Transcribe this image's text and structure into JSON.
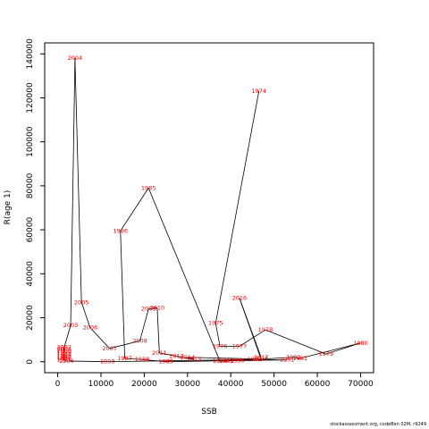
{
  "chart_data": {
    "type": "line",
    "title": "",
    "xlabel": "SSB",
    "ylabel": "R(age 1)",
    "xlim": [
      -3000,
      73000
    ],
    "ylim": [
      -5000,
      145000
    ],
    "xticks": [
      0,
      10000,
      20000,
      30000,
      40000,
      50000,
      60000,
      70000
    ],
    "yticks": [
      0,
      20000,
      40000,
      60000,
      80000,
      100000,
      120000,
      140000
    ],
    "grid": false,
    "legend": "none",
    "line_color": "#000000",
    "label_color": "#ff0000",
    "series": [
      {
        "points": [
          {
            "year": "1974",
            "x": 46500,
            "y": 123000
          },
          {
            "year": "1975",
            "x": 36500,
            "y": 17500
          },
          {
            "year": "1976",
            "x": 37500,
            "y": 7000
          },
          {
            "year": "1977",
            "x": 42000,
            "y": 7000
          },
          {
            "year": "1978",
            "x": 48000,
            "y": 14500
          },
          {
            "year": "1979",
            "x": 62000,
            "y": 3500
          },
          {
            "year": "1980",
            "x": 70000,
            "y": 8500
          },
          {
            "year": "1981",
            "x": 56000,
            "y": 1500
          },
          {
            "year": "1982",
            "x": 54500,
            "y": 2000
          },
          {
            "year": "1983",
            "x": 39000,
            "y": 300
          },
          {
            "year": "1984",
            "x": 37500,
            "y": 200
          },
          {
            "year": "1985",
            "x": 21000,
            "y": 79000
          },
          {
            "year": "1986",
            "x": 14500,
            "y": 59500
          },
          {
            "year": "1987",
            "x": 15500,
            "y": 1500
          },
          {
            "year": "1988",
            "x": 19500,
            "y": 1000
          },
          {
            "year": "1989",
            "x": 25000,
            "y": 0
          },
          {
            "year": "1990",
            "x": 41500,
            "y": 500
          },
          {
            "year": "1991",
            "x": 53000,
            "y": 800
          },
          {
            "year": "1992",
            "x": 45500,
            "y": 1000
          },
          {
            "year": "1993",
            "x": 11500,
            "y": 0
          },
          {
            "year": "1994",
            "x": 2000,
            "y": 300
          },
          {
            "year": "1995",
            "x": 1500,
            "y": 800
          },
          {
            "year": "1996",
            "x": 1500,
            "y": 1500
          },
          {
            "year": "1997",
            "x": 1500,
            "y": 2200
          },
          {
            "year": "1998",
            "x": 1500,
            "y": 3000
          },
          {
            "year": "1999",
            "x": 1500,
            "y": 4200
          },
          {
            "year": "2000",
            "x": 1500,
            "y": 5000
          },
          {
            "year": "2001",
            "x": 1500,
            "y": 5800
          },
          {
            "year": "2002",
            "x": 1500,
            "y": 6500
          },
          {
            "year": "2003",
            "x": 3000,
            "y": 16500
          },
          {
            "year": "2004",
            "x": 4000,
            "y": 138000
          },
          {
            "year": "2005",
            "x": 5500,
            "y": 27000
          },
          {
            "year": "2006",
            "x": 7500,
            "y": 15500
          },
          {
            "year": "2007",
            "x": 12000,
            "y": 6000
          },
          {
            "year": "2008",
            "x": 19000,
            "y": 9500
          },
          {
            "year": "2009",
            "x": 21000,
            "y": 24000
          },
          {
            "year": "2010",
            "x": 23000,
            "y": 24500
          },
          {
            "year": "2011",
            "x": 23500,
            "y": 4000
          },
          {
            "year": "2012",
            "x": 27500,
            "y": 2500
          },
          {
            "year": "2013",
            "x": 31500,
            "y": 1000
          },
          {
            "year": "2014",
            "x": 30000,
            "y": 2000
          },
          {
            "year": "2015",
            "x": 47000,
            "y": 1200
          },
          {
            "year": "2016",
            "x": 42000,
            "y": 29000
          },
          {
            "year": "2017",
            "x": 47000,
            "y": 2000
          }
        ]
      }
    ]
  },
  "footer": "stockassessment.org, codeBen 02M, r9249"
}
